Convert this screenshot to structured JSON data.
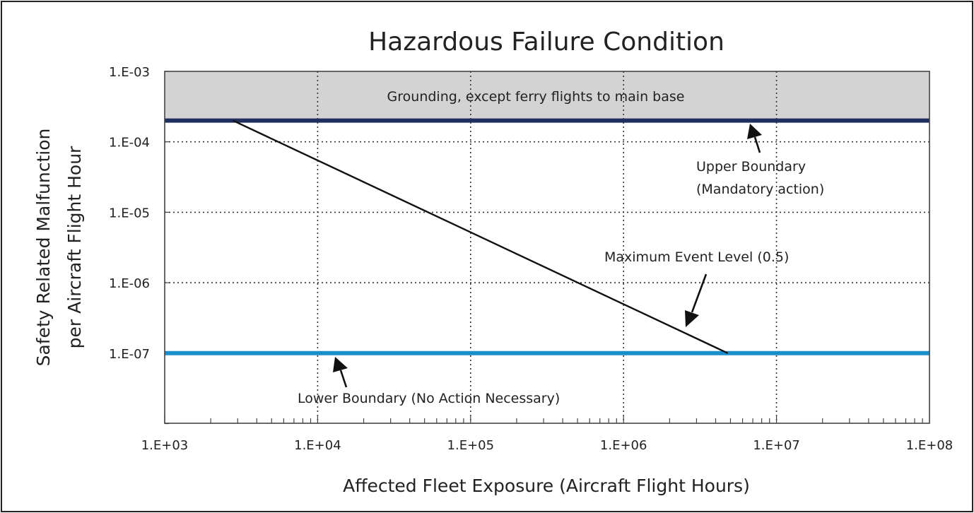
{
  "chart_data": {
    "type": "line",
    "title": "Hazardous Failure Condition",
    "xlabel": "Affected Fleet Exposure (Aircraft Flight Hours)",
    "ylabel_lines": [
      "Safety Related Malfunction",
      "per Aircraft Flight Hour"
    ],
    "x_scale": "log",
    "y_scale": "log",
    "xlim": [
      1000,
      100000000
    ],
    "ylim": [
      5e-09,
      0.001
    ],
    "x_tick_labels": [
      "1.E+03",
      "1.E+04",
      "1.E+05",
      "1.E+06",
      "1.E+07",
      "1.E+08"
    ],
    "x_ticks": [
      1000,
      10000,
      100000,
      1000000,
      10000000,
      100000000
    ],
    "y_tick_labels": [
      "1.E-03",
      "1.E-04",
      "1.E-05",
      "1.E-06",
      "1.E-07"
    ],
    "y_ticks": [
      0.001,
      0.0001,
      1e-05,
      1e-06,
      1e-07
    ],
    "grid": true,
    "grounding_zone": {
      "label": "Grounding, except ferry flights to main base",
      "y_from": 0.0002,
      "y_to": 0.001,
      "color": "#d3d3d3"
    },
    "series": [
      {
        "name": "Upper Boundary",
        "kind": "hline",
        "y": 0.0002,
        "color": "#1f2f5e",
        "label_lines": [
          "Upper Boundary",
          "(Mandatory action)"
        ]
      },
      {
        "name": "Lower Boundary",
        "kind": "hline",
        "y": 1e-07,
        "color": "#1b8fcc",
        "label_lines": [
          "Lower Boundary (No Action Necessary)"
        ]
      },
      {
        "name": "Maximum Event Level (0.5)",
        "kind": "line",
        "x": [
          2800,
          4800000
        ],
        "y": [
          0.0002,
          1e-07
        ],
        "color": "#111111",
        "label_lines": [
          "Maximum Event Level (0.5)"
        ]
      }
    ]
  }
}
